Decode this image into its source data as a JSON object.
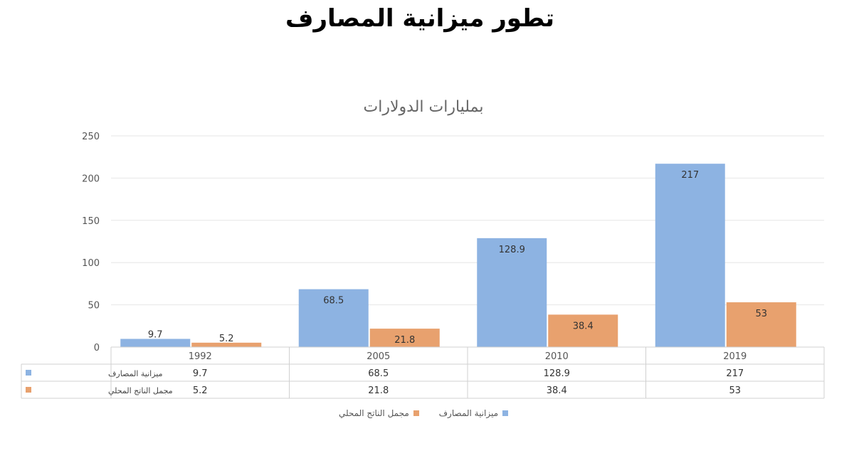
{
  "page": {
    "title": "تطور ميزانية المصارف"
  },
  "colors": {
    "bank_budget": "#8DB3E2",
    "gdp": "#E8A16E",
    "grid": "#e6e6e6",
    "table_border": "#d0d0d0"
  },
  "chart_data": {
    "type": "bar",
    "title": "بمليارات الدولارات",
    "categories": [
      "1992",
      "2005",
      "2010",
      "2019"
    ],
    "series": [
      {
        "name": "ميزانية المصارف",
        "values": [
          9.7,
          68.5,
          128.9,
          217
        ]
      },
      {
        "name": "مجمل الناتج المحلي",
        "values": [
          5.2,
          21.8,
          38.4,
          53
        ]
      }
    ],
    "data_labels": [
      [
        "9.7",
        "68.5",
        "128.9",
        "217"
      ],
      [
        "5.2",
        "21.8",
        "38.4",
        "53"
      ]
    ],
    "yticks": [
      "0",
      "50",
      "100",
      "150",
      "200",
      "250"
    ],
    "ylim": [
      0,
      250
    ],
    "grid": true,
    "legend_position": "bottom",
    "data_table": true
  }
}
